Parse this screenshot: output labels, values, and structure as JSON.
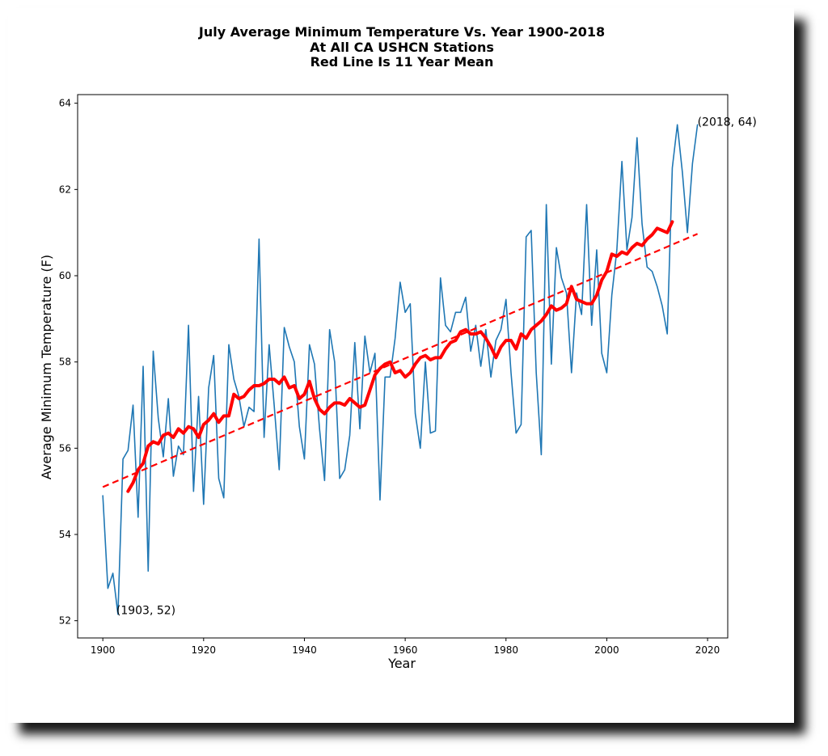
{
  "chart_data": {
    "type": "line",
    "title": [
      "July Average Minimum Temperature Vs. Year 1900-2018",
      "At All CA USHCN Stations",
      "Red Line Is 11 Year Mean"
    ],
    "xlabel": "Year",
    "ylabel": "Average Minimum Temperature (F)",
    "xlim": [
      1895,
      2024
    ],
    "ylim": [
      51.6,
      64.2
    ],
    "xticks": [
      1900,
      1920,
      1940,
      1960,
      1980,
      2000,
      2020
    ],
    "yticks": [
      52,
      54,
      56,
      58,
      60,
      62,
      64
    ],
    "grid": false,
    "series": [
      {
        "role": "annual",
        "color": "#1f77b4",
        "x": [
          1900,
          1901,
          1902,
          1903,
          1904,
          1905,
          1906,
          1907,
          1908,
          1909,
          1910,
          1911,
          1912,
          1913,
          1914,
          1915,
          1916,
          1917,
          1918,
          1919,
          1920,
          1921,
          1922,
          1923,
          1924,
          1925,
          1926,
          1927,
          1928,
          1929,
          1930,
          1931,
          1932,
          1933,
          1934,
          1935,
          1936,
          1937,
          1938,
          1939,
          1940,
          1941,
          1942,
          1943,
          1944,
          1945,
          1946,
          1947,
          1948,
          1949,
          1950,
          1951,
          1952,
          1953,
          1954,
          1955,
          1956,
          1957,
          1958,
          1959,
          1960,
          1961,
          1962,
          1963,
          1964,
          1965,
          1966,
          1967,
          1968,
          1969,
          1970,
          1971,
          1972,
          1973,
          1974,
          1975,
          1976,
          1977,
          1978,
          1979,
          1980,
          1981,
          1982,
          1983,
          1984,
          1985,
          1986,
          1987,
          1988,
          1989,
          1990,
          1991,
          1992,
          1993,
          1994,
          1995,
          1996,
          1997,
          1998,
          1999,
          2000,
          2001,
          2002,
          2003,
          2004,
          2005,
          2006,
          2007,
          2008,
          2009,
          2010,
          2011,
          2012,
          2013,
          2014,
          2015,
          2016,
          2017,
          2018
        ],
        "y": [
          54.9,
          52.75,
          53.1,
          52.15,
          55.75,
          55.95,
          57.0,
          54.4,
          57.9,
          53.15,
          58.25,
          56.7,
          55.8,
          57.15,
          55.35,
          56.05,
          55.85,
          58.85,
          55.0,
          57.2,
          54.7,
          57.4,
          58.15,
          55.3,
          54.85,
          58.4,
          57.6,
          57.2,
          56.5,
          56.95,
          56.85,
          60.85,
          56.25,
          58.4,
          57.0,
          55.5,
          58.8,
          58.35,
          58.0,
          56.5,
          55.75,
          58.4,
          57.95,
          56.45,
          55.25,
          58.75,
          58.0,
          55.3,
          55.5,
          56.3,
          58.45,
          56.45,
          58.6,
          57.75,
          58.2,
          54.8,
          57.65,
          57.65,
          58.55,
          59.85,
          59.15,
          59.35,
          56.8,
          56.0,
          58.0,
          56.35,
          56.4,
          59.95,
          58.85,
          58.7,
          59.15,
          59.15,
          59.5,
          58.25,
          58.85,
          57.9,
          58.75,
          57.65,
          58.5,
          58.75,
          59.45,
          57.75,
          56.35,
          56.55,
          60.9,
          61.05,
          57.75,
          55.85,
          61.65,
          57.95,
          60.65,
          59.95,
          59.6,
          57.75,
          59.6,
          59.1,
          61.65,
          58.85,
          60.6,
          58.2,
          57.75,
          59.55,
          60.6,
          62.65,
          60.6,
          61.35,
          63.2,
          61.2,
          60.2,
          60.1,
          59.75,
          59.3,
          58.65,
          62.5,
          63.5,
          62.4,
          61.0,
          62.6,
          63.5
        ]
      },
      {
        "role": "11-year mean",
        "color": "#ff0000",
        "x": [
          1905,
          1906,
          1907,
          1908,
          1909,
          1910,
          1911,
          1912,
          1913,
          1914,
          1915,
          1916,
          1917,
          1918,
          1919,
          1920,
          1921,
          1922,
          1923,
          1924,
          1925,
          1926,
          1927,
          1928,
          1929,
          1930,
          1931,
          1932,
          1933,
          1934,
          1935,
          1936,
          1937,
          1938,
          1939,
          1940,
          1941,
          1942,
          1943,
          1944,
          1945,
          1946,
          1947,
          1948,
          1949,
          1950,
          1951,
          1952,
          1953,
          1954,
          1955,
          1956,
          1957,
          1958,
          1959,
          1960,
          1961,
          1962,
          1963,
          1964,
          1965,
          1966,
          1967,
          1968,
          1969,
          1970,
          1971,
          1972,
          1973,
          1974,
          1975,
          1976,
          1977,
          1978,
          1979,
          1980,
          1981,
          1982,
          1983,
          1984,
          1985,
          1986,
          1987,
          1988,
          1989,
          1990,
          1991,
          1992,
          1993,
          1994,
          1995,
          1996,
          1997,
          1998,
          1999,
          2000,
          2001,
          2002,
          2003,
          2004,
          2005,
          2006,
          2007,
          2008,
          2009,
          2010,
          2011,
          2012,
          2013
        ],
        "y": [
          55.0,
          55.2,
          55.5,
          55.65,
          56.05,
          56.15,
          56.1,
          56.3,
          56.35,
          56.25,
          56.45,
          56.35,
          56.5,
          56.45,
          56.25,
          56.55,
          56.65,
          56.8,
          56.6,
          56.75,
          56.75,
          57.25,
          57.15,
          57.2,
          57.35,
          57.45,
          57.45,
          57.5,
          57.6,
          57.6,
          57.5,
          57.65,
          57.4,
          57.45,
          57.15,
          57.25,
          57.55,
          57.15,
          56.9,
          56.8,
          56.95,
          57.05,
          57.05,
          57.0,
          57.15,
          57.05,
          56.95,
          57.0,
          57.35,
          57.7,
          57.85,
          57.95,
          58.0,
          57.75,
          57.8,
          57.65,
          57.75,
          57.95,
          58.1,
          58.15,
          58.05,
          58.1,
          58.1,
          58.3,
          58.45,
          58.5,
          58.7,
          58.75,
          58.65,
          58.65,
          58.7,
          58.55,
          58.35,
          58.1,
          58.35,
          58.5,
          58.5,
          58.3,
          58.65,
          58.55,
          58.75,
          58.85,
          58.95,
          59.1,
          59.3,
          59.2,
          59.25,
          59.35,
          59.75,
          59.45,
          59.4,
          59.35,
          59.35,
          59.55,
          59.9,
          60.1,
          60.5,
          60.45,
          60.55,
          60.5,
          60.65,
          60.75,
          60.7,
          60.85,
          60.95,
          61.1,
          61.05,
          61.0,
          61.25
        ]
      },
      {
        "role": "trend",
        "color": "#ff0000",
        "style": "dashed",
        "x": [
          1900,
          2018
        ],
        "y": [
          55.1,
          60.97
        ]
      }
    ],
    "annotations": [
      {
        "text": "(1903, 52)",
        "x": 1903,
        "y": 52
      },
      {
        "text": "(2018, 64)",
        "x": 2018,
        "y": 64
      }
    ]
  }
}
